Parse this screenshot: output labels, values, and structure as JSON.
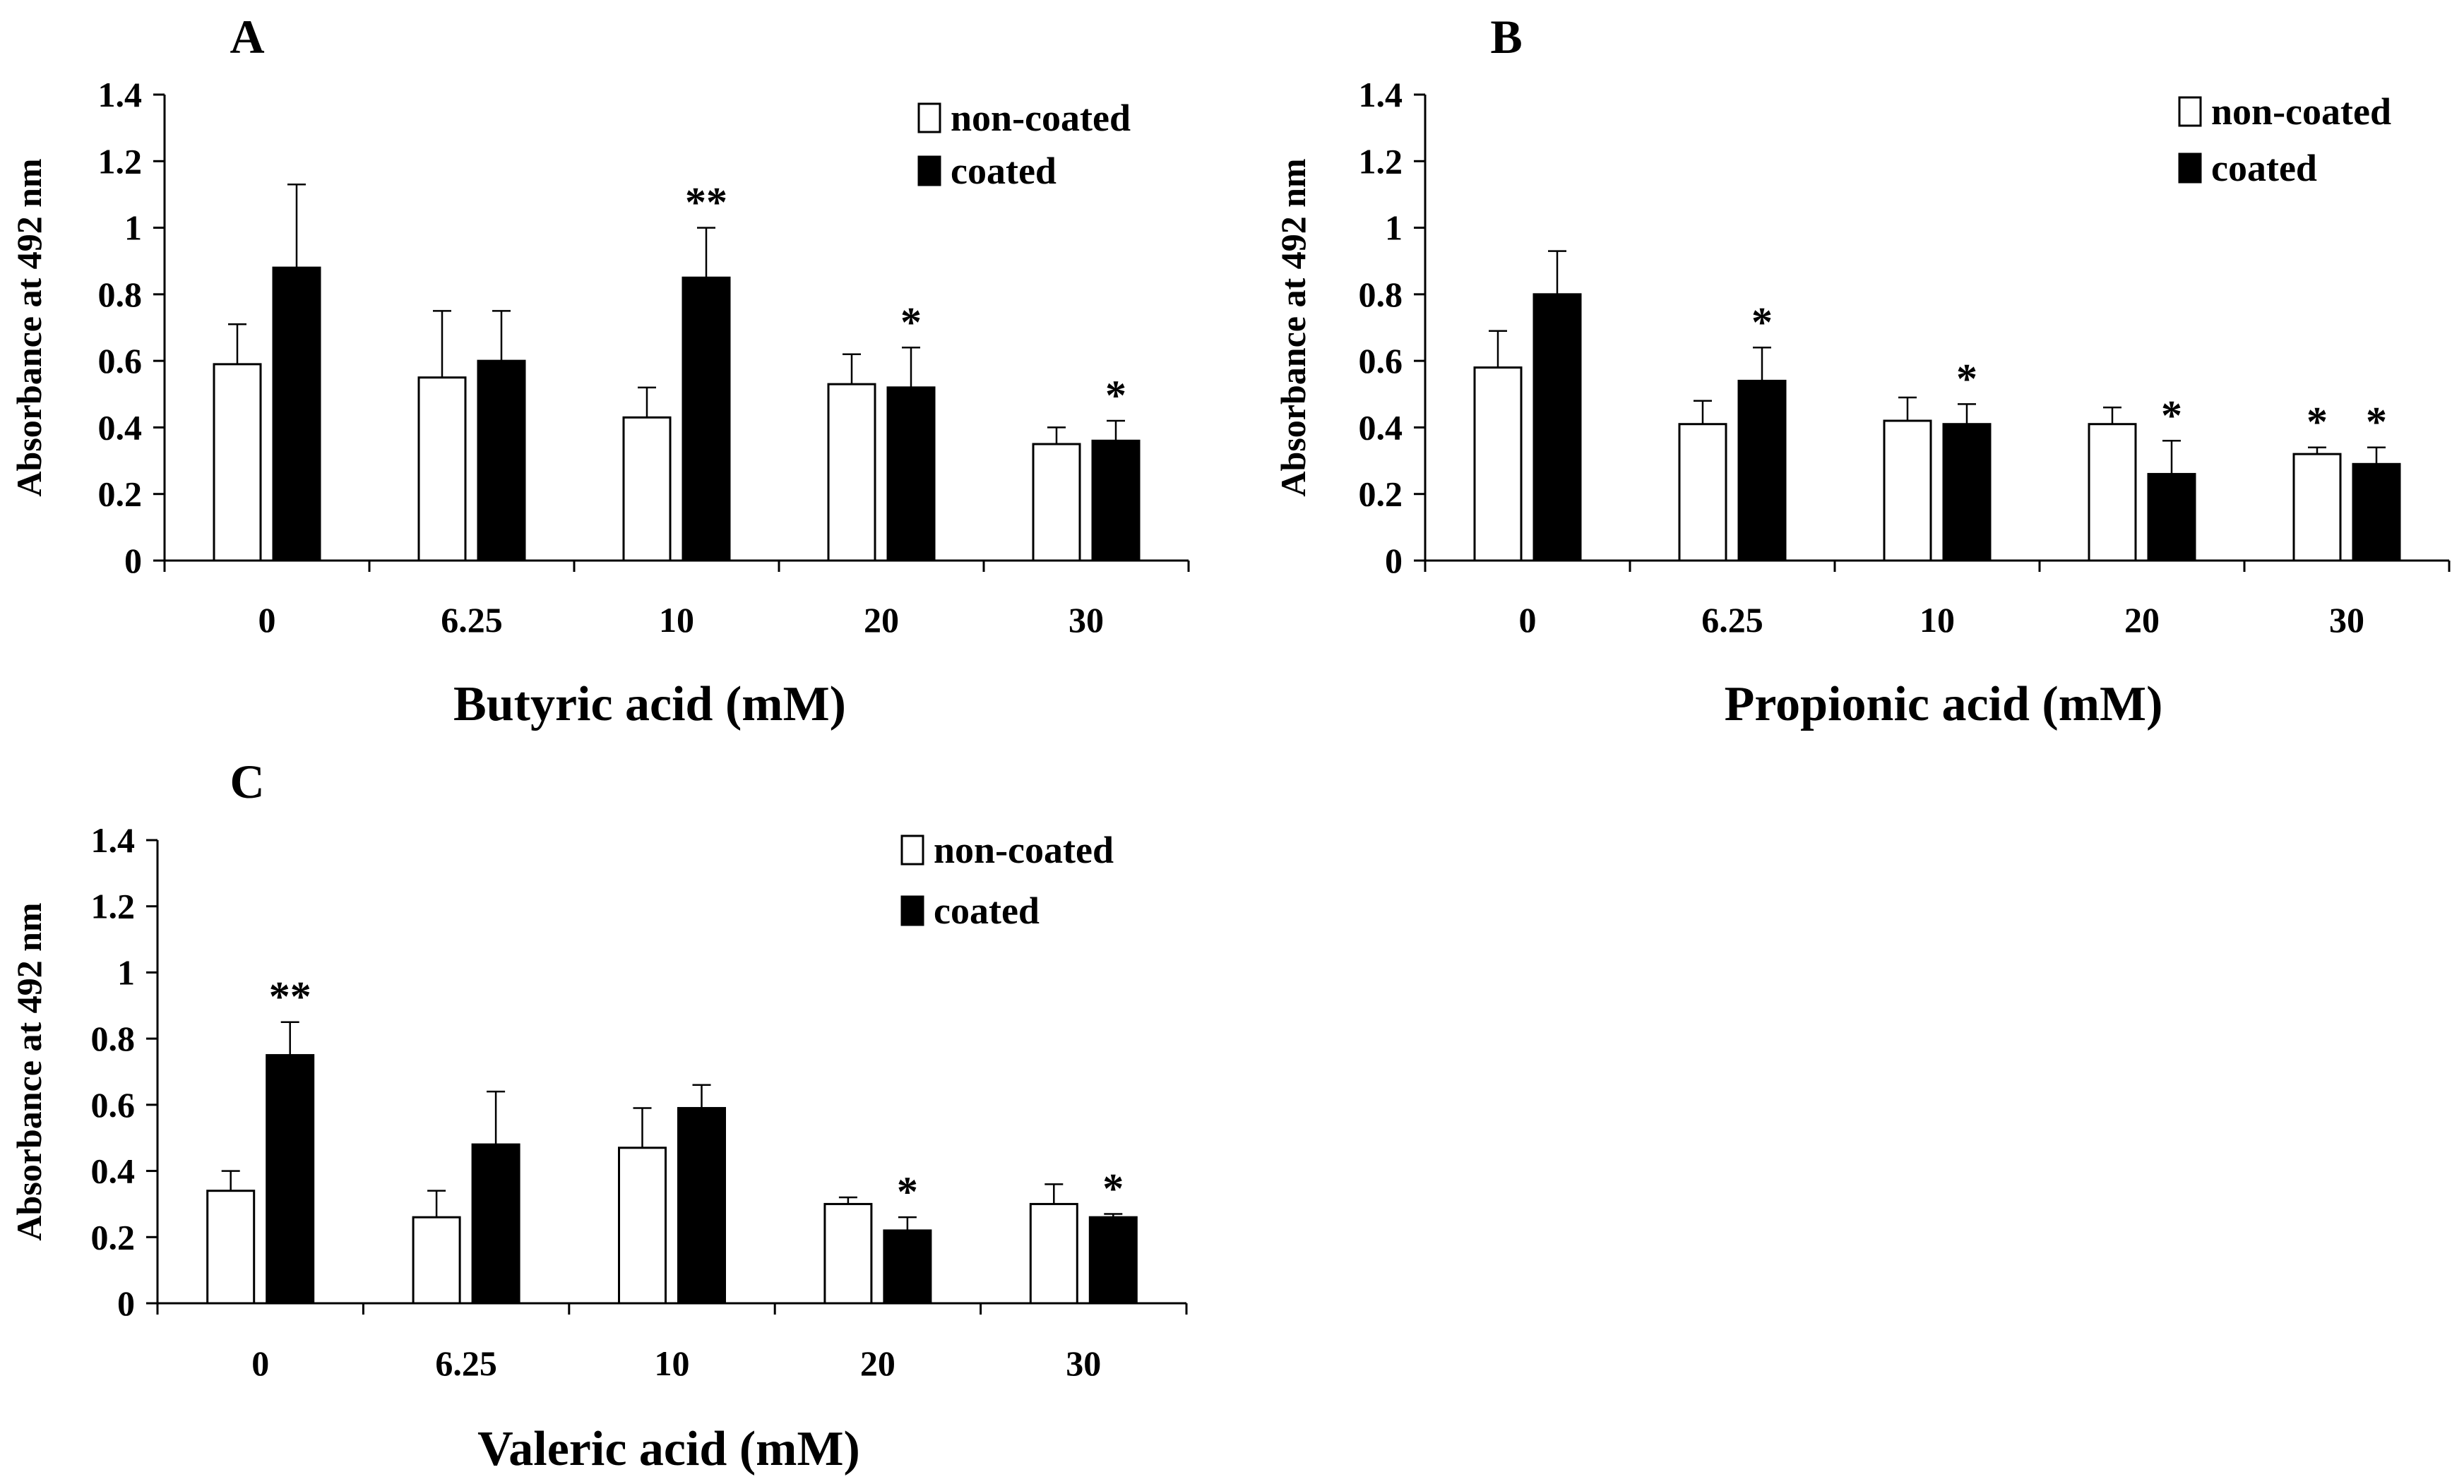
{
  "chart_data": [
    {
      "type": "bar",
      "panel": "A",
      "title": "",
      "xlabel": "Butyric acid (mM)",
      "ylabel": "Absorbance at 492 nm",
      "ylim": [
        0,
        1.4
      ],
      "yticks": [
        "0",
        "0.2",
        "0.4",
        "0.6",
        "0.8",
        "1",
        "1.2",
        "1.4"
      ],
      "categories": [
        "0",
        "6.25",
        "10",
        "20",
        "30"
      ],
      "legend_position": "top-right",
      "series": [
        {
          "name": "non-coated",
          "color": "#ffffff",
          "values": [
            0.59,
            0.55,
            0.43,
            0.53,
            0.35
          ],
          "errors": [
            0.12,
            0.2,
            0.09,
            0.09,
            0.05
          ],
          "annotations": [
            "",
            "",
            "",
            "",
            ""
          ]
        },
        {
          "name": "coated",
          "color": "#000000",
          "values": [
            0.88,
            0.6,
            0.85,
            0.52,
            0.36
          ],
          "errors": [
            0.25,
            0.15,
            0.15,
            0.12,
            0.06
          ],
          "annotations": [
            "",
            "",
            "**",
            "*",
            "*"
          ]
        }
      ]
    },
    {
      "type": "bar",
      "panel": "B",
      "title": "",
      "xlabel": "Propionic acid (mM)",
      "ylabel": "Absorbance at 492 nm",
      "ylim": [
        0,
        1.4
      ],
      "yticks": [
        "0",
        "0.2",
        "0.4",
        "0.6",
        "0.8",
        "1",
        "1.2",
        "1.4"
      ],
      "categories": [
        "0",
        "6.25",
        "10",
        "20",
        "30"
      ],
      "legend_position": "top-right",
      "series": [
        {
          "name": "non-coated",
          "color": "#ffffff",
          "values": [
            0.58,
            0.41,
            0.42,
            0.41,
            0.32
          ],
          "errors": [
            0.11,
            0.07,
            0.07,
            0.05,
            0.02
          ],
          "annotations": [
            "",
            "",
            "",
            "",
            "*"
          ]
        },
        {
          "name": "coated",
          "color": "#000000",
          "values": [
            0.8,
            0.54,
            0.41,
            0.26,
            0.29
          ],
          "errors": [
            0.13,
            0.1,
            0.06,
            0.1,
            0.05
          ],
          "annotations": [
            "",
            "*",
            "*",
            "*",
            "*"
          ]
        }
      ]
    },
    {
      "type": "bar",
      "panel": "C",
      "title": "",
      "xlabel": "Valeric acid (mM)",
      "ylabel": "Absorbance at 492 nm",
      "ylim": [
        0,
        1.4
      ],
      "yticks": [
        "0",
        "0.2",
        "0.4",
        "0.6",
        "0.8",
        "1",
        "1.2",
        "1.4"
      ],
      "categories": [
        "0",
        "6.25",
        "10",
        "20",
        "30"
      ],
      "legend_position": "top-right",
      "series": [
        {
          "name": "non-coated",
          "color": "#ffffff",
          "values": [
            0.34,
            0.26,
            0.47,
            0.3,
            0.3
          ],
          "errors": [
            0.06,
            0.08,
            0.12,
            0.02,
            0.06
          ],
          "annotations": [
            "",
            "",
            "",
            "",
            ""
          ]
        },
        {
          "name": "coated",
          "color": "#000000",
          "values": [
            0.75,
            0.48,
            0.59,
            0.22,
            0.26
          ],
          "errors": [
            0.1,
            0.16,
            0.07,
            0.04,
            0.01
          ],
          "annotations": [
            "**",
            "",
            "",
            "*",
            "*"
          ]
        }
      ]
    }
  ]
}
